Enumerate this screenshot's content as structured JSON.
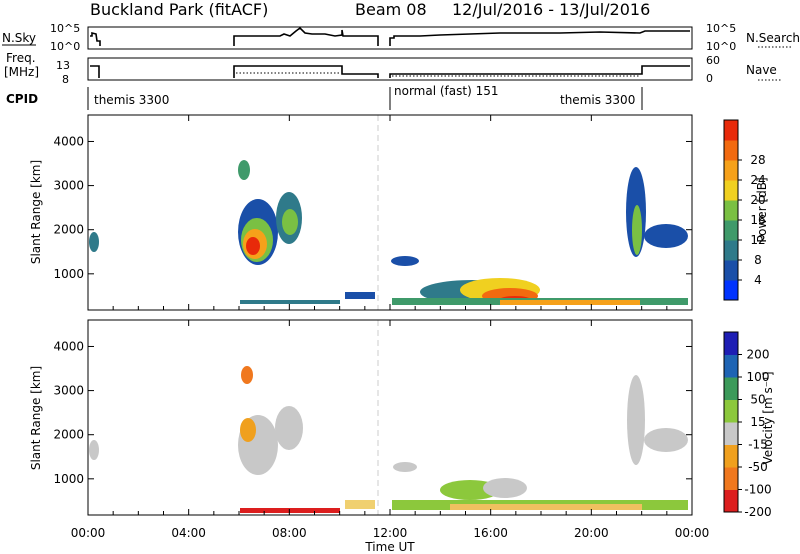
{
  "header": {
    "title": "Buckland Park (fitACF)",
    "beam": "Beam 08",
    "dates": "12/Jul/2016 - 13/Jul/2016"
  },
  "panels": {
    "nsky": {
      "label": "N.Sky",
      "right_label": "N.Search",
      "left_ticks": [
        "10^5",
        "10^0"
      ],
      "right_ticks": [
        "10^5",
        "10^0"
      ]
    },
    "freq": {
      "label_line1": "Freq.",
      "label_line2": "[MHz]",
      "right_label": "Nave",
      "left_ticks": [
        "13",
        "8"
      ],
      "right_ticks": [
        "60",
        "0"
      ]
    },
    "cpid": {
      "label": "CPID",
      "segments": [
        "themis 3300",
        "normal (fast) 151",
        "themis 3300"
      ]
    }
  },
  "chart_data": [
    {
      "type": "heatmap",
      "ylabel": "Slant Range [km]",
      "yticks": [
        1000,
        2000,
        3000,
        4000
      ],
      "ylim": [
        180,
        4600
      ],
      "xlim": [
        0,
        24
      ],
      "colorbar": {
        "label": "Power [dB]",
        "ticks": [
          "4",
          "8",
          "12",
          "16",
          "20",
          "24",
          "28"
        ]
      }
    },
    {
      "type": "heatmap",
      "ylabel": "Slant Range [km]",
      "yticks": [
        1000,
        2000,
        3000,
        4000
      ],
      "ylim": [
        180,
        4600
      ],
      "xlim": [
        0,
        24
      ],
      "xlabel": "Time UT",
      "xtick_labels": [
        "00:00",
        "04:00",
        "08:00",
        "12:00",
        "16:00",
        "20:00",
        "00:00"
      ],
      "colorbar": {
        "label": "Velocity [m s⁻¹]",
        "ticks": [
          "200",
          "100",
          "50",
          "15",
          "-15",
          "-50",
          "-100",
          "-200"
        ]
      }
    }
  ],
  "colors": {
    "power": [
      "#0033ff",
      "#1a4fa8",
      "#2f7a8a",
      "#3f9a6a",
      "#7ac043",
      "#f0d020",
      "#f6a11a",
      "#f26a10",
      "#e82a0a"
    ],
    "velocity": [
      "#1e1eb4",
      "#1e64b4",
      "#3c9a5a",
      "#8cc83c",
      "#c8c8c8",
      "#f0a01e",
      "#f0781e",
      "#dc1e1e"
    ]
  }
}
